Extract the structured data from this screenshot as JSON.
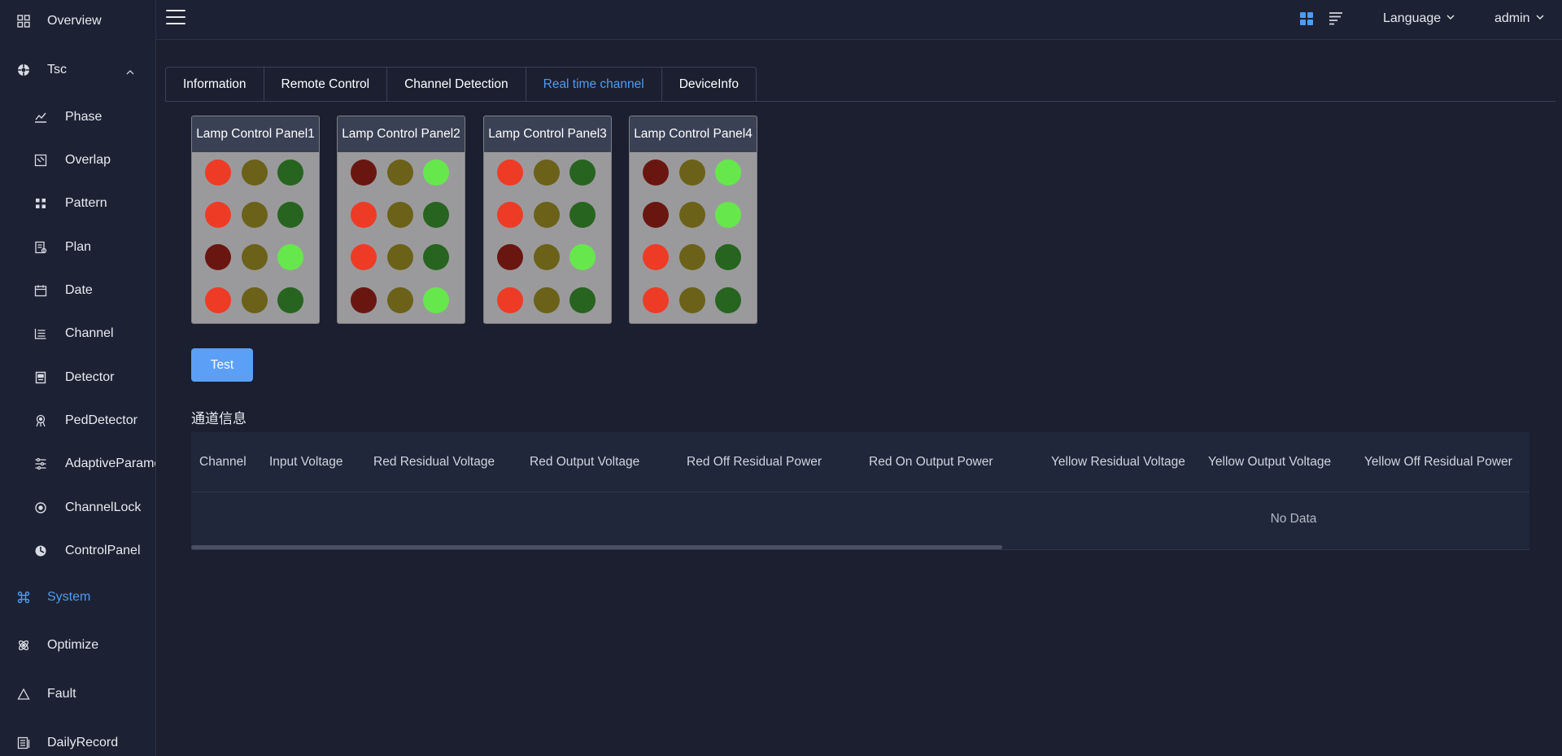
{
  "sidebar": {
    "items": [
      {
        "label": "Overview",
        "icon": "grid-icon"
      },
      {
        "label": "Tsc",
        "icon": "tsc-icon"
      },
      {
        "label": "Phase",
        "icon": "phase-icon"
      },
      {
        "label": "Overlap",
        "icon": "overlap-icon"
      },
      {
        "label": "Pattern",
        "icon": "pattern-icon"
      },
      {
        "label": "Plan",
        "icon": "plan-icon"
      },
      {
        "label": "Date",
        "icon": "calendar-icon"
      },
      {
        "label": "Channel",
        "icon": "channel-icon"
      },
      {
        "label": "Detector",
        "icon": "detector-icon"
      },
      {
        "label": "PedDetector",
        "icon": "ped-detector-icon"
      },
      {
        "label": "AdaptiveParameter",
        "icon": "sliders-icon"
      },
      {
        "label": "ChannelLock",
        "icon": "lock-icon"
      },
      {
        "label": "ControlPanel",
        "icon": "control-panel-icon"
      },
      {
        "label": "System",
        "icon": "command-icon"
      },
      {
        "label": "Optimize",
        "icon": "optimize-icon"
      },
      {
        "label": "Fault",
        "icon": "warning-icon"
      },
      {
        "label": "DailyRecord",
        "icon": "record-icon"
      }
    ]
  },
  "header": {
    "language_label": "Language",
    "user_label": "admin"
  },
  "tabs": [
    {
      "label": "Information"
    },
    {
      "label": "Remote Control"
    },
    {
      "label": "Channel Detection"
    },
    {
      "label": "Real time channel"
    },
    {
      "label": "DeviceInfo"
    }
  ],
  "colors": {
    "red_on": "#ee3b26",
    "red_off": "#6a1610",
    "yellow_off": "#6b6119",
    "green_on": "#66e84c",
    "green_off": "#27641f",
    "accent": "#4e9cf4"
  },
  "panels": [
    {
      "title": "Lamp Control Panel1",
      "rows": [
        [
          "red_on",
          "yellow_off",
          "green_off"
        ],
        [
          "red_on",
          "yellow_off",
          "green_off"
        ],
        [
          "red_off",
          "yellow_off",
          "green_on"
        ],
        [
          "red_on",
          "yellow_off",
          "green_off"
        ]
      ]
    },
    {
      "title": "Lamp Control Panel2",
      "rows": [
        [
          "red_off",
          "yellow_off",
          "green_on"
        ],
        [
          "red_on",
          "yellow_off",
          "green_off"
        ],
        [
          "red_on",
          "yellow_off",
          "green_off"
        ],
        [
          "red_off",
          "yellow_off",
          "green_on"
        ]
      ]
    },
    {
      "title": "Lamp Control Panel3",
      "rows": [
        [
          "red_on",
          "yellow_off",
          "green_off"
        ],
        [
          "red_on",
          "yellow_off",
          "green_off"
        ],
        [
          "red_off",
          "yellow_off",
          "green_on"
        ],
        [
          "red_on",
          "yellow_off",
          "green_off"
        ]
      ]
    },
    {
      "title": "Lamp Control Panel4",
      "rows": [
        [
          "red_off",
          "yellow_off",
          "green_on"
        ],
        [
          "red_off",
          "yellow_off",
          "green_on"
        ],
        [
          "red_on",
          "yellow_off",
          "green_off"
        ],
        [
          "red_on",
          "yellow_off",
          "green_off"
        ]
      ]
    }
  ],
  "test_button": "Test",
  "section_title": "通道信息",
  "table": {
    "columns": [
      "Channel",
      "Input Voltage",
      "Red Residual Voltage",
      "Red Output Voltage",
      "Red Off Residual Power",
      "Red On Output Power",
      "Yellow Residual Voltage",
      "Yellow Output Voltage",
      "Yellow Off Residual Power"
    ],
    "empty_text": "No Data"
  }
}
